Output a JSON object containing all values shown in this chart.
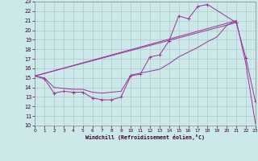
{
  "bg_color": "#cde8e8",
  "grid_color": "#aacccc",
  "line_color": "#993399",
  "xlim": [
    0,
    23
  ],
  "ylim": [
    10,
    23
  ],
  "xticks": [
    0,
    1,
    2,
    3,
    4,
    5,
    6,
    7,
    8,
    9,
    10,
    11,
    12,
    13,
    14,
    15,
    16,
    17,
    18,
    19,
    20,
    21,
    22,
    23
  ],
  "yticks": [
    10,
    11,
    12,
    13,
    14,
    15,
    16,
    17,
    18,
    19,
    20,
    21,
    22,
    23
  ],
  "xlabel": "Windchill (Refroidissement éolien,°C)",
  "curve1_x": [
    0,
    1,
    2,
    3,
    4,
    5,
    6,
    7,
    8,
    9,
    10,
    11,
    12,
    13,
    14,
    15,
    16,
    17,
    18,
    21
  ],
  "curve1_y": [
    15.2,
    14.9,
    13.4,
    13.6,
    13.5,
    13.5,
    12.9,
    12.7,
    12.7,
    13.0,
    15.2,
    15.4,
    17.2,
    17.4,
    18.9,
    21.5,
    21.2,
    22.5,
    22.7,
    20.8
  ],
  "curve2_x": [
    0,
    1,
    2,
    3,
    4,
    5,
    6,
    7,
    8,
    9,
    10,
    11,
    12,
    13,
    14,
    15,
    16,
    17,
    18,
    19,
    20,
    21
  ],
  "curve2_y": [
    15.2,
    15.0,
    14.0,
    13.9,
    13.8,
    13.8,
    13.5,
    13.4,
    13.5,
    13.6,
    15.3,
    15.5,
    15.7,
    15.9,
    16.5,
    17.2,
    17.7,
    18.2,
    18.8,
    19.3,
    20.5,
    21.0
  ],
  "curve3_x": [
    0,
    21,
    22,
    23
  ],
  "curve3_y": [
    15.2,
    20.8,
    17.1,
    12.5
  ],
  "curve4_x": [
    0,
    21,
    22,
    23
  ],
  "curve4_y": [
    15.2,
    21.0,
    16.5,
    10.2
  ]
}
